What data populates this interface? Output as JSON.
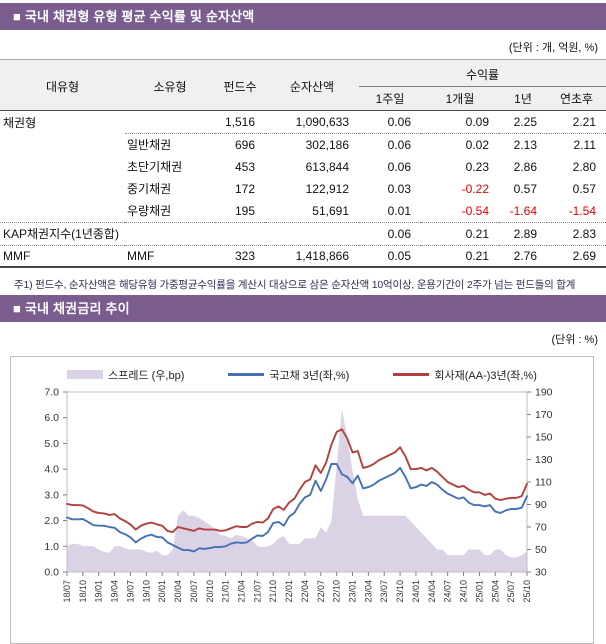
{
  "section1": {
    "title": "■ 국내 채권형 유형 평균 수익률 및 순자산액",
    "unit_label": "(단위 : 개, 억원, %)",
    "table": {
      "headers": {
        "major": "대유형",
        "minor": "소유형",
        "fund_count": "펀드수",
        "net_assets": "순자산액",
        "returns_group": "수익률",
        "cols": [
          "1주일",
          "1개월",
          "1년",
          "연초후"
        ]
      },
      "rows": [
        {
          "major": "채권형",
          "minor": "",
          "fund_count": "1,516",
          "net_assets": "1,090,633",
          "returns": [
            "0.06",
            "0.09",
            "2.25",
            "2.21"
          ]
        },
        {
          "major": "",
          "minor": "일반채권",
          "fund_count": "696",
          "net_assets": "302,186",
          "returns": [
            "0.06",
            "0.02",
            "2.13",
            "2.11"
          ]
        },
        {
          "major": "",
          "minor": "초단기채권",
          "fund_count": "453",
          "net_assets": "613,844",
          "returns": [
            "0.06",
            "0.23",
            "2.86",
            "2.80"
          ]
        },
        {
          "major": "",
          "minor": "중기채권",
          "fund_count": "172",
          "net_assets": "122,912",
          "returns": [
            "0.03",
            "-0.22",
            "0.57",
            "0.57"
          ]
        },
        {
          "major": "",
          "minor": "우량채권",
          "fund_count": "195",
          "net_assets": "51,691",
          "returns": [
            "0.01",
            "-0.54",
            "-1.64",
            "-1.54"
          ]
        },
        {
          "major": "KAP채권지수(1년종합)",
          "minor": "",
          "fund_count": "",
          "net_assets": "",
          "returns": [
            "0.06",
            "0.21",
            "2.89",
            "2.83"
          ]
        },
        {
          "major": "MMF",
          "minor": "MMF",
          "fund_count": "323",
          "net_assets": "1,418,866",
          "returns": [
            "0.05",
            "0.21",
            "2.76",
            "2.69"
          ]
        }
      ]
    },
    "footnote": "주1) 펀드수, 순자산액은 해당유형 가중평균수익률을 계산시 대상으로 삼은 순자산액 10억이상, 운용기간이 2주가 넘는 펀드들의 합계"
  },
  "section2": {
    "title": "■ 국내 채권금리 추이",
    "unit_label": "(단위 : %)"
  },
  "colors": {
    "section_header_bg": "#7b5c8e",
    "negative_value": "#e60000",
    "spread_fill": "#dcd2e6",
    "treasury_line": "#4472b4",
    "corporate_line": "#b2403f"
  },
  "chart_data": {
    "type": "line",
    "title": "국내 채권금리 추이",
    "x_start": "18/07",
    "x_end": "25/10",
    "x_tick_labels": [
      "18/07",
      "18/10",
      "19/01",
      "19/04",
      "19/07",
      "19/10",
      "20/01",
      "20/04",
      "20/07",
      "20/10",
      "21/01",
      "21/04",
      "21/07",
      "21/10",
      "22/01",
      "22/04",
      "22/07",
      "22/10",
      "23/01",
      "23/04",
      "23/07",
      "23/10",
      "24/01",
      "24/04",
      "24/07",
      "24/10",
      "25/01",
      "25/04",
      "25/07",
      "25/10"
    ],
    "months_per_tick": 3,
    "left_axis": {
      "min": 0.0,
      "max": 7.0,
      "step": 1.0,
      "unit": "%"
    },
    "right_axis": {
      "min": 30,
      "max": 190,
      "step": 20,
      "unit": "bp"
    },
    "legend_position": "top",
    "grid": false,
    "series": [
      {
        "name": "스프레드 (우,bp)",
        "type": "area",
        "axis": "right",
        "color": "#dcd2e6",
        "values": [
          53,
          55,
          55,
          53,
          53,
          53,
          50,
          48,
          47,
          53,
          53,
          51,
          50,
          50,
          50,
          48,
          47,
          49,
          45,
          45,
          50,
          80,
          85,
          80,
          80,
          78,
          75,
          72,
          68,
          63,
          62,
          60,
          63,
          62,
          60,
          58,
          53,
          52,
          53,
          55,
          60,
          62,
          55,
          55,
          55,
          60,
          60,
          60,
          70,
          65,
          75,
          125,
          175,
          150,
          120,
          95,
          80,
          80,
          80,
          80,
          80,
          80,
          80,
          80,
          80,
          75,
          70,
          65,
          60,
          55,
          50,
          50,
          45,
          45,
          45,
          45,
          50,
          50,
          50,
          45,
          45,
          50,
          50,
          45,
          43,
          43,
          45,
          48
        ]
      },
      {
        "name": "국고채 3년(좌,%)",
        "type": "line",
        "axis": "left",
        "color": "#4472b4",
        "values": [
          2.12,
          2.05,
          2.05,
          2.06,
          1.95,
          1.82,
          1.8,
          1.8,
          1.75,
          1.72,
          1.55,
          1.47,
          1.35,
          1.15,
          1.3,
          1.4,
          1.45,
          1.36,
          1.35,
          1.15,
          1.05,
          0.95,
          0.85,
          0.85,
          0.8,
          0.92,
          0.9,
          0.93,
          0.97,
          0.97,
          1.0,
          1.1,
          1.15,
          1.13,
          1.15,
          1.3,
          1.42,
          1.4,
          1.55,
          1.9,
          1.95,
          1.8,
          2.15,
          2.3,
          2.65,
          2.9,
          3.0,
          3.55,
          3.15,
          3.6,
          4.2,
          4.2,
          3.8,
          3.7,
          3.45,
          3.75,
          3.25,
          3.3,
          3.4,
          3.55,
          3.65,
          3.75,
          3.85,
          4.05,
          3.7,
          3.25,
          3.3,
          3.4,
          3.35,
          3.5,
          3.4,
          3.2,
          3.05,
          2.95,
          2.85,
          2.9,
          2.7,
          2.6,
          2.6,
          2.55,
          2.6,
          2.35,
          2.3,
          2.4,
          2.45,
          2.45,
          2.5,
          2.95
        ]
      },
      {
        "name": "회사재(AA-)3년(좌,%)",
        "type": "line",
        "axis": "left",
        "color": "#b2403f",
        "values": [
          2.65,
          2.6,
          2.6,
          2.59,
          2.48,
          2.35,
          2.3,
          2.28,
          2.22,
          2.25,
          2.08,
          1.98,
          1.85,
          1.65,
          1.8,
          1.88,
          1.92,
          1.85,
          1.8,
          1.6,
          1.55,
          1.75,
          1.7,
          1.65,
          1.6,
          1.7,
          1.65,
          1.65,
          1.65,
          1.6,
          1.62,
          1.7,
          1.78,
          1.75,
          1.75,
          1.88,
          1.95,
          1.92,
          2.08,
          2.45,
          2.55,
          2.42,
          2.7,
          2.85,
          3.2,
          3.5,
          3.6,
          4.15,
          3.85,
          4.25,
          4.95,
          5.45,
          5.55,
          5.2,
          4.65,
          4.7,
          4.05,
          4.1,
          4.2,
          4.35,
          4.45,
          4.55,
          4.65,
          4.85,
          4.5,
          4.0,
          4.0,
          4.05,
          3.95,
          4.05,
          3.9,
          3.7,
          3.5,
          3.4,
          3.3,
          3.35,
          3.2,
          3.1,
          3.1,
          3.0,
          3.05,
          2.85,
          2.8,
          2.85,
          2.88,
          2.88,
          2.95,
          3.43
        ]
      }
    ]
  }
}
